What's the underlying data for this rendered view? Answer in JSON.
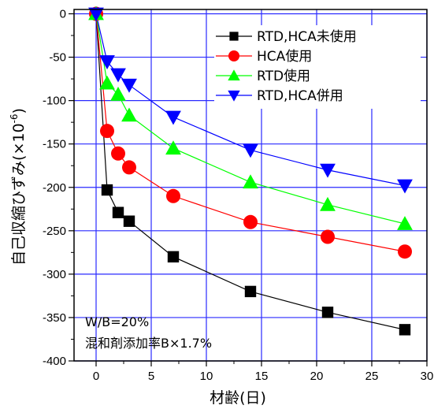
{
  "chart_data": {
    "type": "line",
    "xlabel": "材齢(日)",
    "ylabel_main": "自己収縮ひずみ(×10",
    "ylabel_exp": "-6",
    "ylabel_close": ")",
    "xlim": [
      -2,
      30
    ],
    "ylim": [
      -400,
      5
    ],
    "xticks": [
      0,
      5,
      10,
      15,
      20,
      25,
      30
    ],
    "xtick_labels": [
      "0",
      "5",
      "10",
      "15",
      "20",
      "25",
      "30"
    ],
    "yticks": [
      0,
      -50,
      -100,
      -150,
      -200,
      -250,
      -300,
      -350,
      -400
    ],
    "ytick_labels": [
      "0",
      "-50",
      "-100",
      "-150",
      "-200",
      "-250",
      "-300",
      "-350",
      "-400"
    ],
    "grid": true,
    "legend_position": "top-right",
    "annotations": [
      "W/B=20%",
      "混和剤添加率B×1.7%"
    ],
    "series": [
      {
        "name": "RTD,HCA未使用",
        "marker": "square",
        "color": "#000000",
        "x": [
          0,
          1,
          2,
          3,
          7,
          14,
          21,
          28
        ],
        "y": [
          0,
          -203,
          -229,
          -239,
          -280,
          -320,
          -344,
          -364
        ]
      },
      {
        "name": "HCA使用",
        "marker": "circle",
        "color": "#ff0000",
        "x": [
          0,
          1,
          2,
          3,
          7,
          14,
          21,
          28
        ],
        "y": [
          0,
          -135,
          -161,
          -177,
          -210,
          -240,
          -257,
          -274
        ]
      },
      {
        "name": "RTD使用",
        "marker": "triangle-up",
        "color": "#00ff00",
        "x": [
          0,
          1,
          2,
          3,
          7,
          14,
          21,
          28
        ],
        "y": [
          0,
          -80,
          -93,
          -117,
          -155,
          -194,
          -220,
          -242
        ]
      },
      {
        "name": "RTD,HCA併用",
        "marker": "triangle-down",
        "color": "#0000ff",
        "x": [
          0,
          1,
          2,
          3,
          7,
          14,
          21,
          28
        ],
        "y": [
          0,
          -55,
          -70,
          -82,
          -119,
          -157,
          -180,
          -198
        ]
      }
    ]
  }
}
